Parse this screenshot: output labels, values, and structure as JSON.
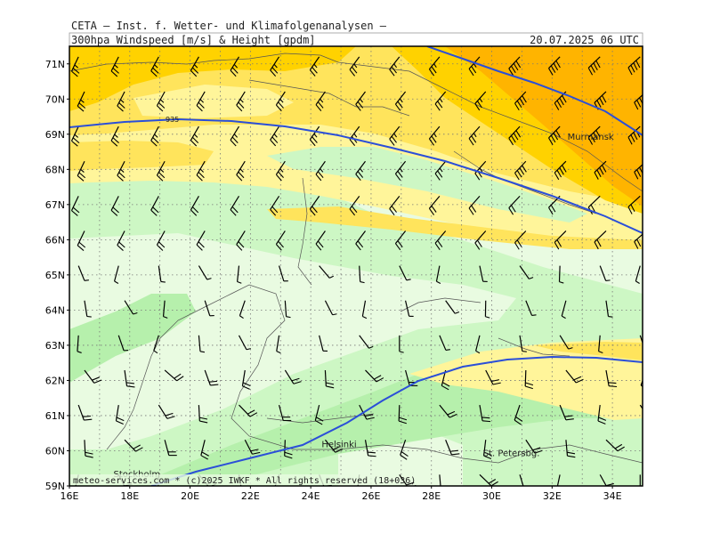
{
  "header": {
    "title": "CETA — Inst. f. Wetter- und Klimafolgenanalysen —",
    "subtitle": "300hpa Windspeed [m/s] & Height [gpdm]",
    "valid_time": "20.07.2025 06 UTC"
  },
  "footer": {
    "credit": "meteo-services.com * (c)2025 IWKF * All rights reserved (18+036)"
  },
  "axes": {
    "lat_labels": [
      "71N",
      "70N",
      "69N",
      "68N",
      "67N",
      "66N",
      "65N",
      "64N",
      "63N",
      "62N",
      "61N",
      "60N",
      "59N"
    ],
    "lon_labels": [
      "16E",
      "18E",
      "20E",
      "22E",
      "24E",
      "26E",
      "28E",
      "30E",
      "32E",
      "34E"
    ]
  },
  "contour": {
    "label": "935"
  },
  "cities": [
    {
      "name": "Murmansk",
      "lon": 33.1,
      "lat": 68.95
    },
    {
      "name": "Helsinki",
      "lon": 24.95,
      "lat": 60.2
    },
    {
      "name": "Stockholm",
      "lon": 18.05,
      "lat": 59.35
    },
    {
      "name": "St. Petersbg.",
      "lon": 30.3,
      "lat": 59.95
    }
  ],
  "colors": {
    "very_light_green": "#e9fbe1",
    "light_green": "#cdf7c4",
    "green": "#b6f0ac",
    "light_yellow": "#fff59a",
    "yellow": "#ffe45c",
    "gold": "#ffd200",
    "orange": "#ffb400",
    "contour": "#2b4fd8",
    "grid": "#777777",
    "coast": "#555555"
  }
}
